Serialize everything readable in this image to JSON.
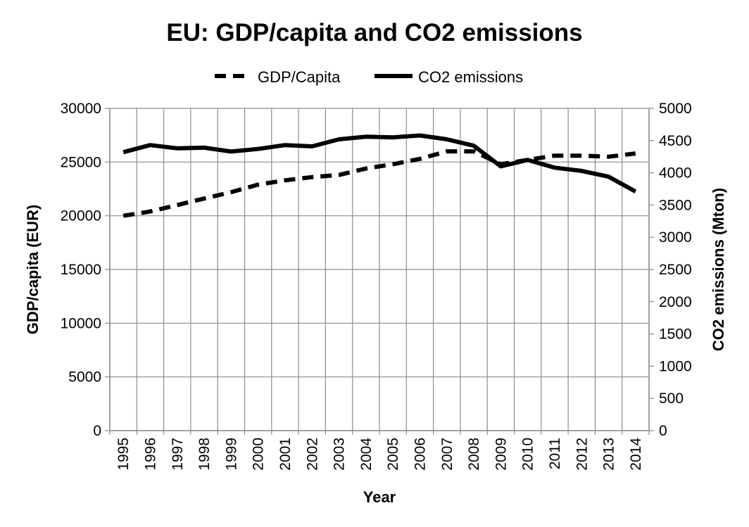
{
  "chart_data": {
    "type": "line",
    "title": "EU: GDP/capita and CO2 emissions",
    "xlabel": "Year",
    "ylabel_left": "GDP/capita (EUR)",
    "ylabel_right": "CO2 emissions (Mton)",
    "legend_position": "top-center",
    "grid": true,
    "x": [
      "1995",
      "1996",
      "1997",
      "1998",
      "1999",
      "2000",
      "2001",
      "2002",
      "2003",
      "2004",
      "2005",
      "2006",
      "2007",
      "2008",
      "2009",
      "2010",
      "2011",
      "2012",
      "2013",
      "2014"
    ],
    "y_left": {
      "min": 0,
      "max": 30000,
      "ticks": [
        "0",
        "5000",
        "10000",
        "15000",
        "20000",
        "25000",
        "30000"
      ]
    },
    "y_right": {
      "min": 0,
      "max": 5000,
      "ticks": [
        "0",
        "500",
        "1000",
        "1500",
        "2000",
        "2500",
        "3000",
        "3500",
        "4000",
        "4500",
        "5000"
      ]
    },
    "series": [
      {
        "name": "GDP/Capita",
        "axis": "left",
        "style": "dashed",
        "color": "#000000",
        "values": [
          20000,
          20400,
          21000,
          21600,
          22200,
          22900,
          23300,
          23600,
          23800,
          24400,
          24800,
          25300,
          26000,
          26000,
          24800,
          25200,
          25600,
          25600,
          25500,
          25800
        ]
      },
      {
        "name": "CO2 emissions",
        "axis": "right",
        "style": "solid",
        "color": "#000000",
        "values": [
          4320,
          4430,
          4380,
          4390,
          4330,
          4370,
          4430,
          4410,
          4520,
          4560,
          4550,
          4580,
          4520,
          4420,
          4100,
          4200,
          4080,
          4030,
          3940,
          3710
        ]
      }
    ]
  }
}
